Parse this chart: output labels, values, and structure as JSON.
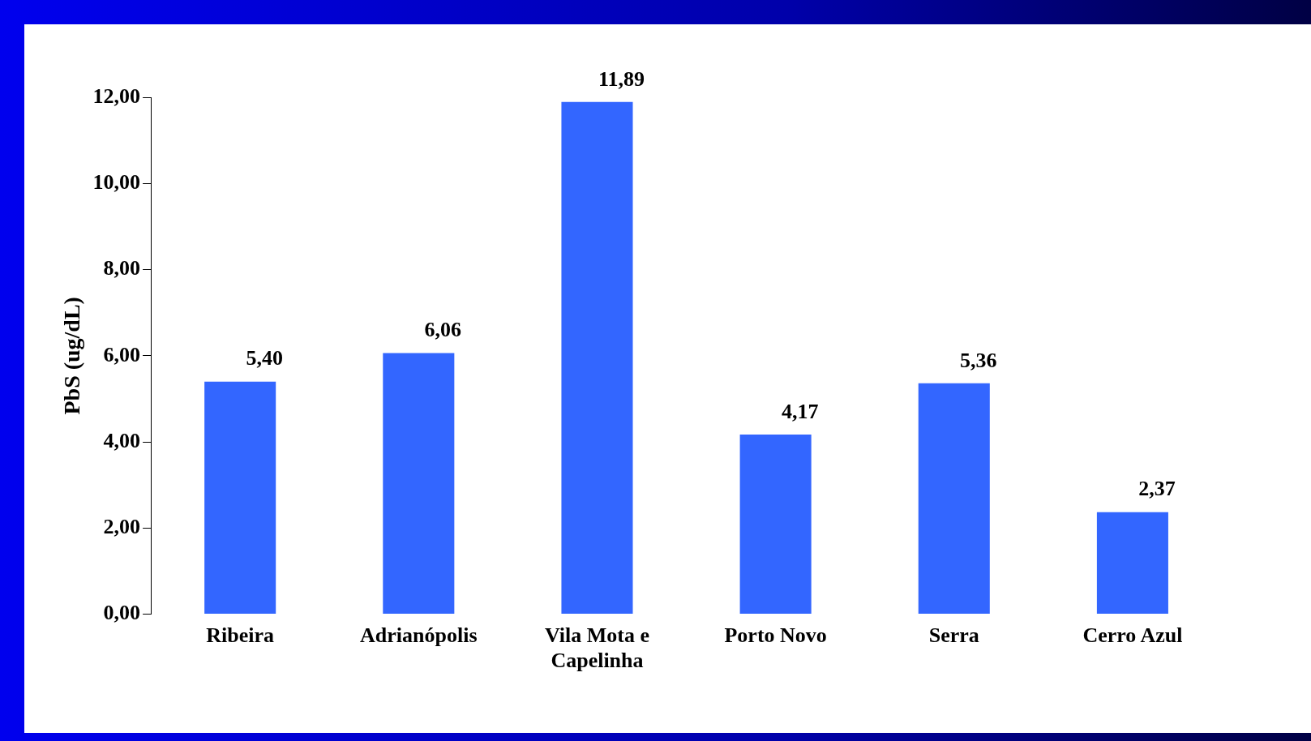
{
  "chart_data": {
    "type": "bar",
    "ylabel": "PbS (ug/dL)",
    "categories": [
      "Ribeira",
      "Adrianópolis",
      "Vila Mota e Capelinha",
      "Porto Novo",
      "Serra",
      "Cerro Azul"
    ],
    "values": [
      5.4,
      6.06,
      11.89,
      4.17,
      5.36,
      2.37
    ],
    "value_labels": [
      "5,40",
      "6,06",
      "11,89",
      "4,17",
      "5,36",
      "2,37"
    ],
    "color": "#3366ff",
    "ylim": [
      0,
      12
    ],
    "yticks": [
      {
        "value": 0,
        "label": "0,00"
      },
      {
        "value": 2,
        "label": "2,00"
      },
      {
        "value": 4,
        "label": "4,00"
      },
      {
        "value": 6,
        "label": "6,00"
      },
      {
        "value": 8,
        "label": "8,00"
      },
      {
        "value": 10,
        "label": "10,00"
      },
      {
        "value": 12,
        "label": "12,00"
      }
    ],
    "grid": false,
    "legend": false
  }
}
